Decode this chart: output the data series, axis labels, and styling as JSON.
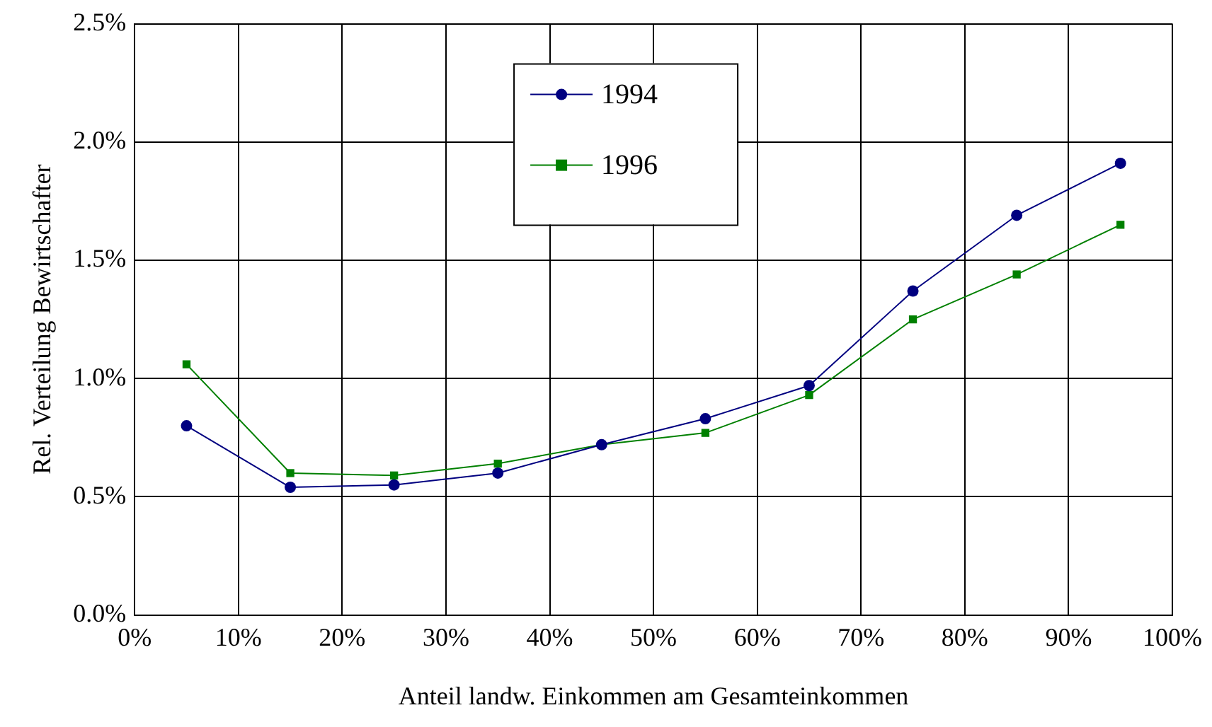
{
  "chart_data": {
    "type": "line",
    "xlabel": "Anteil landw. Einkommen am Gesamteinkommen",
    "ylabel": "Rel. Verteilung Bewirtschafter",
    "x": [
      5,
      15,
      25,
      35,
      45,
      55,
      65,
      75,
      85,
      95
    ],
    "series": [
      {
        "name": "1994",
        "color": "#000080",
        "marker": "circle",
        "values": [
          0.8,
          0.54,
          0.55,
          0.6,
          0.72,
          0.83,
          0.97,
          1.37,
          1.69,
          1.91
        ]
      },
      {
        "name": "1996",
        "color": "#008000",
        "marker": "square",
        "values": [
          1.06,
          0.6,
          0.59,
          0.64,
          0.72,
          0.77,
          0.93,
          1.25,
          1.44,
          1.65
        ]
      }
    ],
    "xlim": [
      0,
      100
    ],
    "xticks": [
      {
        "value": 0,
        "label": "0%"
      },
      {
        "value": 10,
        "label": "10%"
      },
      {
        "value": 20,
        "label": "20%"
      },
      {
        "value": 30,
        "label": "30%"
      },
      {
        "value": 40,
        "label": "40%"
      },
      {
        "value": 50,
        "label": "50%"
      },
      {
        "value": 60,
        "label": "60%"
      },
      {
        "value": 70,
        "label": "70%"
      },
      {
        "value": 80,
        "label": "80%"
      },
      {
        "value": 90,
        "label": "90%"
      },
      {
        "value": 100,
        "label": "100%"
      }
    ],
    "ylim": [
      0,
      2.5
    ],
    "yticks": [
      {
        "value": 0,
        "label": "0.0%"
      },
      {
        "value": 0.5,
        "label": "0.5%"
      },
      {
        "value": 1,
        "label": "1.0%"
      },
      {
        "value": 1.5,
        "label": "1.5%"
      },
      {
        "value": 2,
        "label": "2.0%"
      },
      {
        "value": 2.5,
        "label": "2.5%"
      }
    ],
    "grid": true,
    "legend": "top",
    "line_style": "solid"
  }
}
